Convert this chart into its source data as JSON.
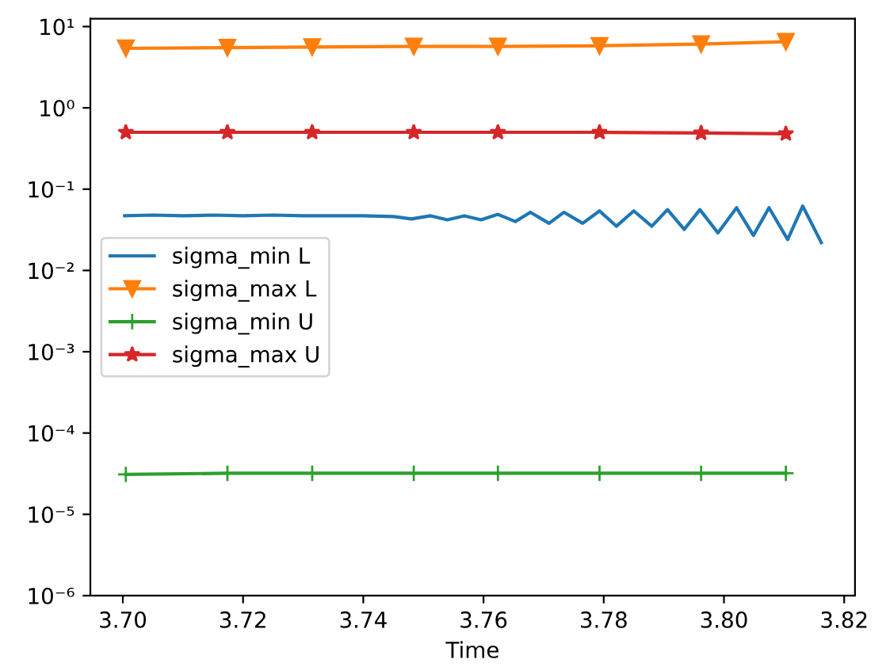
{
  "chart_data": {
    "type": "line",
    "xlabel": "Time",
    "log": "y",
    "xlim": [
      3.6946,
      3.8218
    ],
    "xticks": [
      {
        "value": 3.7,
        "label": "3.70"
      },
      {
        "value": 3.72,
        "label": "3.72"
      },
      {
        "value": 3.74,
        "label": "3.74"
      },
      {
        "value": 3.76,
        "label": "3.76"
      },
      {
        "value": 3.78,
        "label": "3.78"
      },
      {
        "value": 3.8,
        "label": "3.80"
      },
      {
        "value": 3.82,
        "label": "3.82"
      }
    ],
    "ylim": [
      1e-06,
      12.5
    ],
    "yticks": [
      {
        "value": 1e-06,
        "label": "10⁻⁶"
      },
      {
        "value": 1e-05,
        "label": "10⁻⁵"
      },
      {
        "value": 0.0001,
        "label": "10⁻⁴"
      },
      {
        "value": 0.001,
        "label": "10⁻³"
      },
      {
        "value": 0.01,
        "label": "10⁻²"
      },
      {
        "value": 0.1,
        "label": "10⁻¹"
      },
      {
        "value": 1,
        "label": "10⁰"
      },
      {
        "value": 10,
        "label": "10¹"
      }
    ],
    "grid": false,
    "legend": "left",
    "series": [
      {
        "name": "sigma_min L",
        "color": "#1f77b4",
        "marker": "none",
        "x": [
          3.7003,
          3.705,
          3.71,
          3.715,
          3.72,
          3.725,
          3.73,
          3.735,
          3.74,
          3.745,
          3.748,
          3.7512,
          3.754,
          3.7568,
          3.7596,
          3.7624,
          3.7653,
          3.7678,
          3.7709,
          3.7734,
          3.7765,
          3.7793,
          3.7821,
          3.785,
          3.788,
          3.7906,
          3.7934,
          3.796,
          3.799,
          3.8021,
          3.8049,
          3.8075,
          3.8106,
          3.8131,
          3.8162
        ],
        "values": [
          0.047,
          0.048,
          0.047,
          0.048,
          0.047,
          0.048,
          0.047,
          0.047,
          0.047,
          0.046,
          0.043,
          0.047,
          0.042,
          0.047,
          0.042,
          0.049,
          0.04,
          0.052,
          0.038,
          0.052,
          0.038,
          0.054,
          0.035,
          0.054,
          0.035,
          0.056,
          0.032,
          0.056,
          0.029,
          0.059,
          0.027,
          0.059,
          0.024,
          0.062,
          0.022
        ]
      },
      {
        "name": "sigma_max L",
        "color": "#ff7f0e",
        "marker": "triangle",
        "x": [
          3.7005,
          3.7174,
          3.7315,
          3.7484,
          3.7624,
          3.7793,
          3.7962,
          3.8103
        ],
        "values": [
          5.4,
          5.5,
          5.6,
          5.7,
          5.7,
          5.8,
          6.1,
          6.5
        ]
      },
      {
        "name": "sigma_min U",
        "color": "#2ca02c",
        "marker": "cross",
        "x": [
          3.7005,
          3.7174,
          3.7315,
          3.7484,
          3.7624,
          3.7793,
          3.7962,
          3.8103
        ],
        "values": [
          3.1e-05,
          3.2e-05,
          3.2e-05,
          3.2e-05,
          3.2e-05,
          3.2e-05,
          3.2e-05,
          3.2e-05
        ]
      },
      {
        "name": "sigma_max U",
        "color": "#d62728",
        "marker": "star",
        "x": [
          3.7005,
          3.7174,
          3.7315,
          3.7484,
          3.7624,
          3.7793,
          3.7962,
          3.8103
        ],
        "values": [
          0.5,
          0.5,
          0.5,
          0.5,
          0.5,
          0.5,
          0.49,
          0.48
        ]
      }
    ]
  }
}
